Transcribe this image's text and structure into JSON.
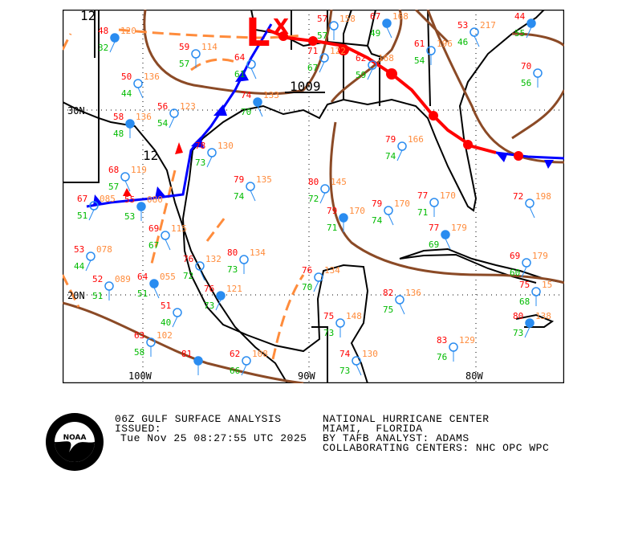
{
  "map": {
    "latitude_labels": [
      "30N",
      "20N"
    ],
    "longitude_labels": [
      "100W",
      "90W",
      "80W"
    ],
    "low_center": {
      "symbol": "L",
      "marker": "X"
    },
    "isobar_labels": [
      "12",
      "12",
      "1009"
    ],
    "colors": {
      "temperature": "#ff0000",
      "dewpoint": "#00bb00",
      "pressure": "#ff8c3c",
      "station": "#2a8cf0",
      "cold_front": "#0000ff",
      "warm_front": "#ff0000",
      "trough": "#ff8c3c",
      "isobar": "#8b4a26",
      "land": "#000000"
    },
    "stations": [
      {
        "t": "48",
        "d": "32",
        "p": "120"
      },
      {
        "t": "59",
        "d": "57",
        "p": "114"
      },
      {
        "t": "50",
        "d": "44",
        "p": "136"
      },
      {
        "t": "56",
        "d": "54",
        "p": "123"
      },
      {
        "t": "58",
        "d": "48",
        "p": "136"
      },
      {
        "t": "64",
        "d": "61",
        "p": ""
      },
      {
        "t": "71",
        "d": "67",
        "p": "122"
      },
      {
        "t": "57",
        "d": "57",
        "p": "158"
      },
      {
        "t": "67",
        "d": "49",
        "p": "168"
      },
      {
        "t": "62",
        "d": "59",
        "p": "168"
      },
      {
        "t": "61",
        "d": "54",
        "p": "196"
      },
      {
        "t": "53",
        "d": "46",
        "p": "217"
      },
      {
        "t": "44",
        "d": "55",
        "p": ""
      },
      {
        "t": "70",
        "d": "56",
        "p": ""
      },
      {
        "t": "68",
        "d": "57",
        "p": "119"
      },
      {
        "t": "67",
        "d": "51",
        "p": "085"
      },
      {
        "t": "55",
        "d": "53",
        "p": "080"
      },
      {
        "t": "69",
        "d": "67",
        "p": "115"
      },
      {
        "t": "53",
        "d": "44",
        "p": "078"
      },
      {
        "t": "52",
        "d": "51",
        "p": "089"
      },
      {
        "t": "64",
        "d": "51",
        "p": "055"
      },
      {
        "t": "51",
        "d": "40",
        "p": ""
      },
      {
        "t": "63",
        "d": "58",
        "p": "102"
      },
      {
        "t": "76",
        "d": "72",
        "p": "132"
      },
      {
        "t": "76",
        "d": "73",
        "p": "121"
      },
      {
        "t": "80",
        "d": "73",
        "p": "134"
      },
      {
        "t": "79",
        "d": "74",
        "p": "135"
      },
      {
        "t": "80",
        "d": "72",
        "p": "145"
      },
      {
        "t": "79",
        "d": "71",
        "p": "170"
      },
      {
        "t": "79",
        "d": "74",
        "p": "170"
      },
      {
        "t": "79",
        "d": "74",
        "p": "166"
      },
      {
        "t": "77",
        "d": "71",
        "p": "170"
      },
      {
        "t": "77",
        "d": "69",
        "p": "179"
      },
      {
        "t": "76",
        "d": "70",
        "p": "134"
      },
      {
        "t": "75",
        "d": "73",
        "p": "148"
      },
      {
        "t": "82",
        "d": "75",
        "p": "136"
      },
      {
        "t": "80",
        "d": "73",
        "p": "138"
      },
      {
        "t": "83",
        "d": "76",
        "p": "129"
      },
      {
        "t": "74",
        "d": "73",
        "p": "130"
      },
      {
        "t": "62",
        "d": "66",
        "p": "108"
      },
      {
        "t": "81",
        "d": "",
        "p": ""
      },
      {
        "t": "72",
        "d": "",
        "p": "198"
      },
      {
        "t": "69",
        "d": "60",
        "p": "179"
      },
      {
        "t": "75",
        "d": "68",
        "p": "15"
      },
      {
        "t": "74",
        "d": "70",
        "p": "133"
      },
      {
        "t": "78",
        "d": "73",
        "p": "130"
      }
    ]
  },
  "caption": {
    "title": "06Z GULF SURFACE ANALYSIS",
    "issued_label": "ISSUED:",
    "issued_time": "Tue Nov 25 08:27:55 UTC 2025",
    "center": "NATIONAL HURRICANE CENTER",
    "location": "MIAMI,  FLORIDA",
    "analyst": "BY TAFB ANALYST: ADAMS",
    "collaborating": "COLLABORATING CENTERS: NHC OPC WPC"
  },
  "logo": {
    "text": "NOAA",
    "ring_text": "NATIONAL OCEANIC AND ATMOSPHERIC ADMINISTRATION U.S. DEPARTMENT OF COMMERCE"
  }
}
